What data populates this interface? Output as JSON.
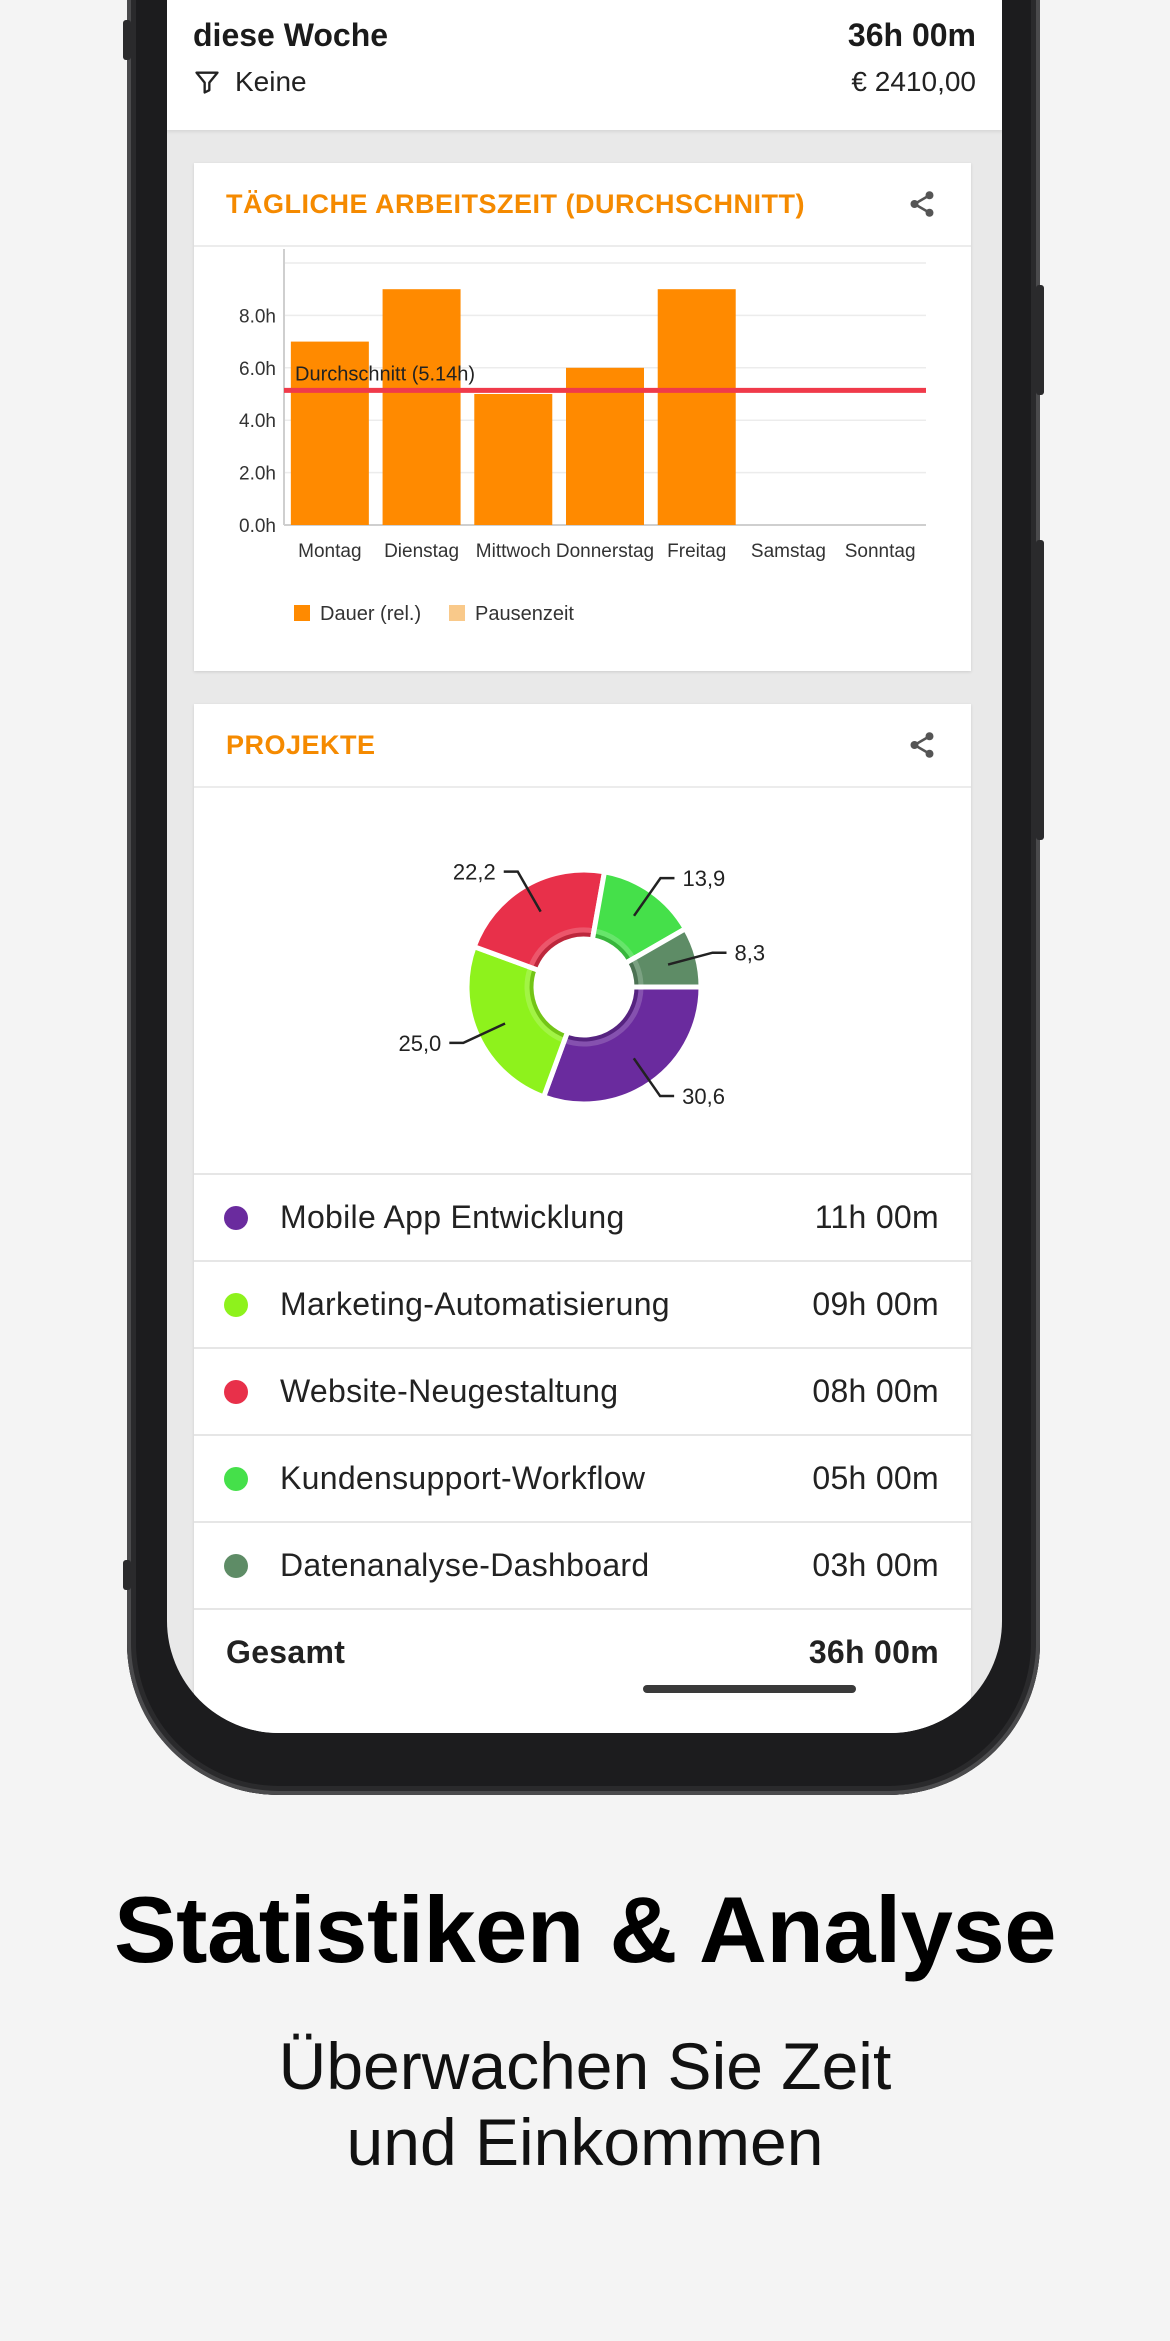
{
  "header": {
    "period_label": "diese Woche",
    "total_time": "36h 00m",
    "filter_label": "Keine",
    "earnings": "€ 2410,00"
  },
  "daily_card": {
    "title": "TÄGLICHE ARBEITSZEIT (DURCHSCHNITT)",
    "share_icon": "share-icon"
  },
  "projects_card": {
    "title": "PROJEKTE",
    "share_icon": "share-icon",
    "items": [
      {
        "name": "Mobile App Entwicklung",
        "value": "11h 00m",
        "color": "#6a2b9e"
      },
      {
        "name": "Marketing-Automatisierung",
        "value": "09h 00m",
        "color": "#8ef21c"
      },
      {
        "name": "Website-Neugestaltung",
        "value": "08h 00m",
        "color": "#e8304a"
      },
      {
        "name": "Kundensupport-Workflow",
        "value": "05h 00m",
        "color": "#45e04a"
      },
      {
        "name": "Datenanalyse-Dashboard",
        "value": "03h 00m",
        "color": "#5e8c66"
      }
    ],
    "total_label": "Gesamt",
    "total_value": "36h 00m"
  },
  "chart_data": [
    {
      "type": "bar",
      "categories": [
        "Montag",
        "Dienstag",
        "Mittwoch",
        "Donnerstag",
        "Freitag",
        "Samstag",
        "Sonntag"
      ],
      "series": [
        {
          "name": "Dauer (rel.)",
          "values": [
            7,
            9,
            5,
            6,
            9,
            0,
            0
          ],
          "color": "#ff8a00"
        },
        {
          "name": "Pausenzeit",
          "values": [
            0,
            0,
            0,
            0,
            0,
            0,
            0
          ],
          "color": "#f9c98a"
        }
      ],
      "yticks": [
        "0.0h",
        "2.0h",
        "4.0h",
        "6.0h",
        "8.0h"
      ],
      "ylim": [
        0,
        10
      ],
      "reference_line": {
        "label": "Durchschnitt (5.14h)",
        "value": 5.14,
        "color": "#f03a4a"
      },
      "legend_position": "bottom-left",
      "grid": true
    },
    {
      "type": "pie",
      "categories": [
        "Mobile App Entwicklung",
        "Marketing-Automatisierung",
        "Website-Neugestaltung",
        "Kundensupport-Workflow",
        "Datenanalyse-Dashboard"
      ],
      "values": [
        30.6,
        25.0,
        22.2,
        13.9,
        8.3
      ],
      "labels": [
        "30,6",
        "25,0",
        "22,2",
        "13,9",
        "8,3"
      ],
      "colors": [
        "#6a2b9e",
        "#8ef21c",
        "#e8304a",
        "#45e04a",
        "#5e8c66"
      ]
    }
  ],
  "marketing": {
    "headline": "Statistiken & Analyse",
    "subline": "Überwachen Sie Zeit und Einkommen"
  }
}
